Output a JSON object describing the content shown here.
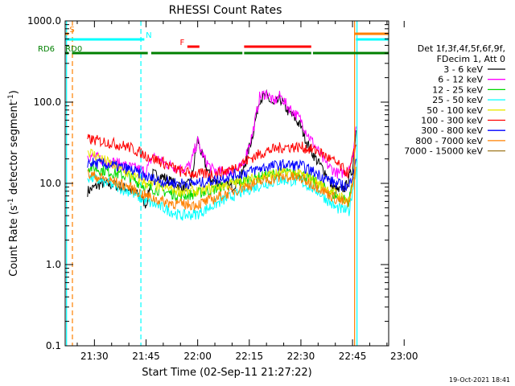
{
  "chart_data": {
    "type": "line",
    "title": "RHESSI Count Rates",
    "xlabel": "Start Time (02-Sep-11 21:27:22)",
    "ylabel_parts": [
      "Count Rate (s",
      "-1",
      " detector segment",
      "-1",
      ")"
    ],
    "scale_y": "log",
    "xlim_minutes": [
      21.5,
      115.5
    ],
    "ylim": [
      0.1,
      1000
    ],
    "x_ticks": [
      {
        "m": 30,
        "label": "21:30"
      },
      {
        "m": 45,
        "label": "21:45"
      },
      {
        "m": 60,
        "label": "22:00"
      },
      {
        "m": 75,
        "label": "22:15"
      },
      {
        "m": 90,
        "label": "22:30"
      },
      {
        "m": 105,
        "label": "22:45"
      },
      {
        "m": 120,
        "label": "23:00"
      }
    ],
    "y_ticks": [
      {
        "v": 0.1,
        "label": "0.1"
      },
      {
        "v": 1,
        "label": "1.0"
      },
      {
        "v": 10,
        "label": "10.0"
      },
      {
        "v": 100,
        "label": "100.0"
      },
      {
        "v": 1000,
        "label": "1000.0"
      }
    ],
    "legend_header": [
      "Det 1f,3f,4f,5f,6f,9f,",
      "FDecim 1, Att 0"
    ],
    "legend_position": "right",
    "series": [
      {
        "name": "3 - 6 keV",
        "color": "#000000",
        "x": [
          28,
          32,
          36,
          40,
          43,
          45,
          47,
          50,
          53,
          56,
          58,
          59,
          60,
          61,
          62,
          64,
          66,
          70,
          73,
          76,
          78,
          80,
          82,
          84,
          86,
          88,
          90,
          92,
          95,
          97,
          99,
          101,
          103,
          105,
          106
        ],
        "y": [
          8,
          10,
          9.5,
          8.5,
          7,
          5.5,
          13,
          12,
          10,
          9,
          10,
          18,
          35,
          24,
          18,
          11,
          10,
          9,
          13,
          40,
          110,
          120,
          90,
          110,
          80,
          65,
          50,
          30,
          18,
          14,
          9,
          8,
          9,
          15,
          45
        ]
      },
      {
        "name": "6 - 12 keV",
        "color": "#ff00ff",
        "x": [
          28,
          32,
          36,
          40,
          43,
          45,
          47,
          50,
          53,
          56,
          58,
          59,
          60,
          61,
          62,
          64,
          66,
          70,
          73,
          76,
          78,
          80,
          82,
          84,
          86,
          88,
          90,
          92,
          95,
          97,
          99,
          101,
          103,
          105,
          106
        ],
        "y": [
          22,
          20,
          18,
          16,
          15,
          14,
          22,
          18,
          16,
          15,
          17,
          25,
          33,
          25,
          20,
          15,
          14,
          14,
          16,
          42,
          115,
          130,
          100,
          120,
          90,
          75,
          60,
          40,
          25,
          18,
          15,
          13,
          14,
          20,
          50
        ]
      },
      {
        "name": "12 - 25 keV",
        "color": "#00d800",
        "x": [
          28,
          34,
          40,
          45,
          50,
          55,
          60,
          65,
          70,
          75,
          80,
          85,
          90,
          95,
          100,
          104,
          106
        ],
        "y": [
          16,
          14,
          12,
          9,
          8,
          7,
          7.5,
          8.5,
          10,
          11,
          12.5,
          13.5,
          13,
          10,
          7,
          6,
          20
        ]
      },
      {
        "name": "25 - 50 keV",
        "color": "#00ffff",
        "x": [
          28,
          34,
          40,
          45,
          50,
          55,
          60,
          65,
          70,
          75,
          80,
          85,
          90,
          95,
          100,
          104,
          106
        ],
        "y": [
          12,
          10,
          8,
          6,
          5,
          4,
          4.2,
          5.5,
          7,
          8.5,
          10,
          11,
          10.5,
          8,
          5,
          4.5,
          15
        ]
      },
      {
        "name": "50 - 100 keV",
        "color": "#e8e800",
        "x": [
          28,
          34,
          40,
          45,
          50,
          55,
          60,
          65,
          70,
          75,
          80,
          85,
          90,
          95,
          100,
          104,
          106
        ],
        "y": [
          25,
          18,
          13,
          10,
          9,
          8,
          8,
          9,
          10,
          11,
          12.5,
          13.5,
          13,
          10,
          7.5,
          6,
          18
        ]
      },
      {
        "name": "100 - 300 keV",
        "color": "#ff0000",
        "x": [
          28,
          34,
          40,
          45,
          50,
          55,
          60,
          65,
          70,
          75,
          80,
          85,
          90,
          95,
          100,
          104,
          106
        ],
        "y": [
          35,
          32,
          28,
          22,
          18,
          14,
          13,
          13,
          15,
          20,
          25,
          28,
          28,
          25,
          18,
          13,
          30
        ]
      },
      {
        "name": "300 - 800 keV",
        "color": "#0000ff",
        "x": [
          28,
          34,
          40,
          45,
          50,
          55,
          60,
          65,
          70,
          75,
          80,
          85,
          90,
          95,
          100,
          104,
          106
        ],
        "y": [
          18,
          17,
          15,
          12,
          10.5,
          10,
          10,
          11,
          12.5,
          14,
          16,
          17,
          16.5,
          13,
          10,
          9,
          20
        ]
      },
      {
        "name": "800 - 7000 keV",
        "color": "#ff8000",
        "x": [
          28,
          34,
          40,
          45,
          50,
          55,
          60,
          65,
          70,
          75,
          80,
          85,
          90,
          95,
          100,
          104,
          106
        ],
        "y": [
          13,
          11,
          9,
          7,
          6,
          5.5,
          5.5,
          6.5,
          8,
          9.5,
          11,
          12,
          11.5,
          9,
          6.5,
          5.5,
          16
        ]
      },
      {
        "name": "7000 - 15000 keV",
        "color": "#a07820",
        "x": [],
        "y": []
      }
    ],
    "state_bars": [
      {
        "label": "S",
        "color": "#ff8000",
        "segments": [
          [
            21.5,
            22.5
          ],
          [
            105.5,
            121
          ]
        ],
        "y": 1,
        "label_at": 23.5
      },
      {
        "label": "N",
        "color": "#00ffff",
        "segments": [
          [
            21.5,
            44.5
          ],
          [
            106,
            121
          ]
        ],
        "y": 2,
        "label_at": 45.8
      },
      {
        "label": "F",
        "color": "#ff0000",
        "segments": [
          [
            57,
            60.5
          ],
          [
            73.5,
            93
          ]
        ],
        "y": 3,
        "label_at": 55.5
      },
      {
        "label": "RD0",
        "color": "#008000",
        "segments": [
          [
            21.5,
            22.5
          ],
          [
            23.5,
            45.5
          ],
          [
            46.5,
            73
          ],
          [
            73.5,
            93
          ],
          [
            93.5,
            121
          ]
        ],
        "y": 4,
        "label_at": 24
      },
      {
        "label": "RD6",
        "color": "#008000",
        "segments": [],
        "y": 4,
        "label_at": 16
      }
    ],
    "vlines": [
      {
        "m": 21.9,
        "color": "#00ffff",
        "style": "solid"
      },
      {
        "m": 23.6,
        "color": "#ff8000",
        "style": "dashed"
      },
      {
        "m": 43.5,
        "color": "#00ffff",
        "style": "dashed"
      },
      {
        "m": 105.6,
        "color": "#ff8000",
        "style": "solid"
      },
      {
        "m": 106.3,
        "color": "#00ffff",
        "style": "solid"
      },
      {
        "m": 119.6,
        "color": "#ff8000",
        "style": "dashed"
      },
      {
        "m": 121.2,
        "color": "#00ffff",
        "style": "dashed"
      }
    ]
  },
  "footer": {
    "timestamp": "19-Oct-2021 18:41"
  }
}
